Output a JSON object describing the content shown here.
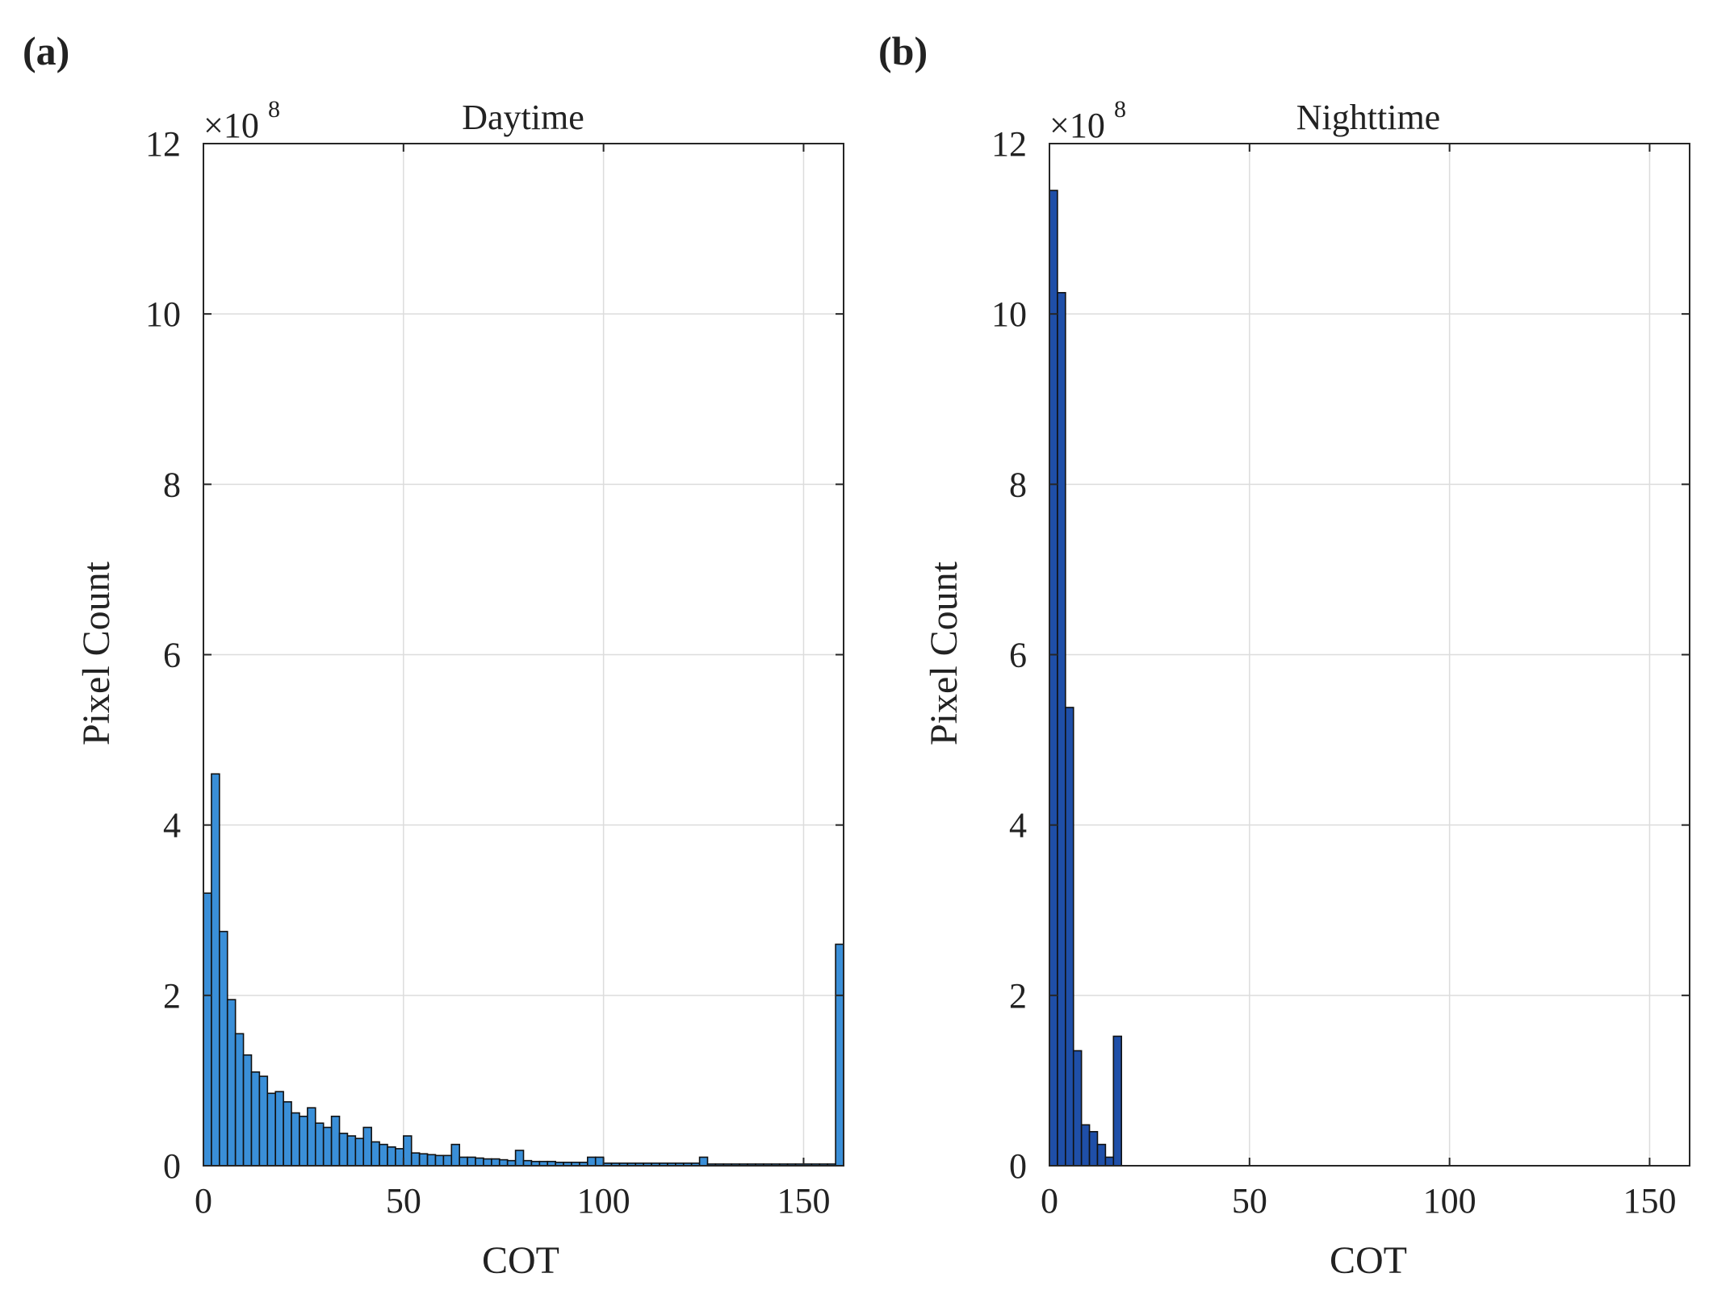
{
  "chart_data": [
    {
      "type": "bar",
      "panel_label": "(a)",
      "title": "Daytime",
      "xlabel": "COT",
      "ylabel": "Pixel Count",
      "y_multiplier": "8",
      "y_multiplier_base": "×10",
      "xlim": [
        0,
        160
      ],
      "ylim": [
        0,
        12
      ],
      "xticks": [
        0,
        50,
        100,
        150
      ],
      "yticks": [
        0,
        2,
        4,
        6,
        8,
        10,
        12
      ],
      "grid": true,
      "bar_color": "#3a8fd8",
      "bin_width": 2,
      "bin_start": 0,
      "values": [
        3.2,
        4.6,
        2.75,
        1.95,
        1.55,
        1.3,
        1.1,
        1.05,
        0.85,
        0.87,
        0.75,
        0.62,
        0.58,
        0.68,
        0.5,
        0.45,
        0.58,
        0.38,
        0.35,
        0.32,
        0.45,
        0.28,
        0.25,
        0.22,
        0.2,
        0.35,
        0.15,
        0.14,
        0.13,
        0.12,
        0.12,
        0.25,
        0.1,
        0.1,
        0.09,
        0.08,
        0.08,
        0.07,
        0.06,
        0.18,
        0.06,
        0.05,
        0.05,
        0.05,
        0.04,
        0.04,
        0.04,
        0.04,
        0.1,
        0.1,
        0.03,
        0.03,
        0.03,
        0.03,
        0.03,
        0.03,
        0.03,
        0.03,
        0.03,
        0.03,
        0.03,
        0.03,
        0.1,
        0.02,
        0.02,
        0.02,
        0.02,
        0.02,
        0.02,
        0.02,
        0.02,
        0.02,
        0.02,
        0.02,
        0.02,
        0.02,
        0.02,
        0.02,
        0.02,
        2.6
      ]
    },
    {
      "type": "bar",
      "panel_label": "(b)",
      "title": "Nighttime",
      "xlabel": "COT",
      "ylabel": "Pixel Count",
      "y_multiplier": "8",
      "y_multiplier_base": "×10",
      "xlim": [
        0,
        160
      ],
      "ylim": [
        0,
        12
      ],
      "xticks": [
        0,
        50,
        100,
        150
      ],
      "yticks": [
        0,
        2,
        4,
        6,
        8,
        10,
        12
      ],
      "grid": true,
      "bar_color": "#1f4fa8",
      "bin_width": 2,
      "bin_start": 0,
      "values": [
        11.45,
        10.25,
        5.38,
        1.35,
        0.48,
        0.4,
        0.25,
        0.1,
        1.52
      ]
    }
  ]
}
